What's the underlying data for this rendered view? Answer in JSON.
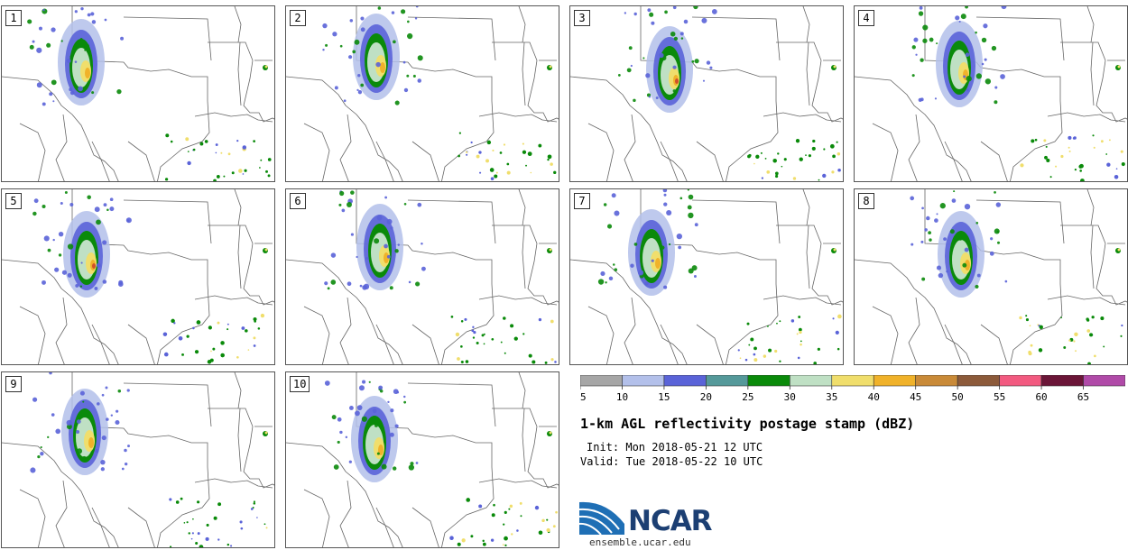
{
  "title": "1-km AGL reflectivity postage stamp (dBZ)",
  "init_label": "Init:",
  "init_value": "Mon 2018-05-21 12 UTC",
  "valid_label": "Valid:",
  "valid_value": "Tue 2018-05-22 10 UTC",
  "logo_text": "NCAR",
  "url": "ensemble.ucar.edu",
  "members": [
    {
      "label": "1",
      "shift": [
        0,
        0
      ]
    },
    {
      "label": "2",
      "shift": [
        12,
        -6
      ]
    },
    {
      "label": "3",
      "shift": [
        22,
        8
      ]
    },
    {
      "label": "4",
      "shift": [
        28,
        2
      ]
    },
    {
      "label": "5",
      "shift": [
        6,
        10
      ]
    },
    {
      "label": "6",
      "shift": [
        16,
        2
      ]
    },
    {
      "label": "7",
      "shift": [
        2,
        8
      ]
    },
    {
      "label": "8",
      "shift": [
        30,
        10
      ]
    },
    {
      "label": "9",
      "shift": [
        4,
        4
      ]
    },
    {
      "label": "10",
      "shift": [
        10,
        12
      ]
    }
  ],
  "legend": {
    "ticks": [
      "5",
      "10",
      "15",
      "20",
      "25",
      "30",
      "35",
      "40",
      "45",
      "50",
      "55",
      "60",
      "65"
    ],
    "colors": [
      "#a6a6a6",
      "#b3c0ea",
      "#5a63d8",
      "#55999a",
      "#0a8a0a",
      "#bfe0c4",
      "#f0de6c",
      "#f0b22a",
      "#c98a38",
      "#8c5a3a",
      "#f25a80",
      "#6b1638",
      "#b04aa8"
    ]
  },
  "colors": {
    "cell_outer": "#b3c0ea",
    "cell_blue": "#5a63d8",
    "cell_green": "#0a8a0a",
    "cell_light": "#bfe0c4",
    "cell_yellow": "#f0de6c",
    "cell_orange": "#f0b22a",
    "cell_red": "#d0502a",
    "border": "#666666",
    "logo": "#1c3f73"
  }
}
